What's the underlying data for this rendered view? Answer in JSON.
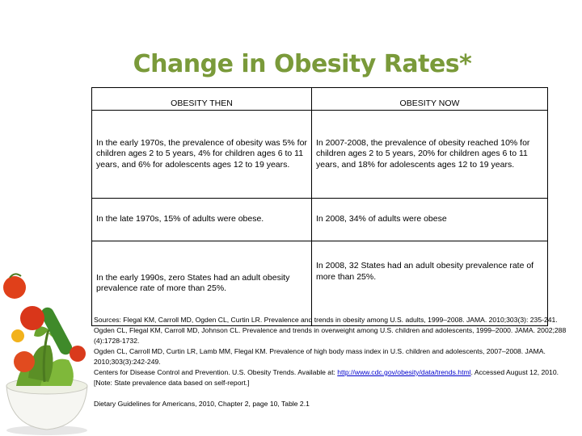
{
  "title": "Change in Obesity Rates*",
  "table": {
    "headers": [
      "OBESITY THEN",
      "OBESITY NOW"
    ],
    "rows": [
      [
        "In the early 1970s, the prevalence of obesity was 5% for children ages 2 to 5 years, 4% for children ages 6 to 11 years, and 6% for adolescents ages 12 to 19 years.",
        "In 2007-2008, the prevalence of obesity reached 10% for children ages 2 to 5 years, 20% for children ages 6 to 11 years, and 18% for adolescents ages 12 to 19 years."
      ],
      [
        "In the late 1970s, 15% of adults were obese.",
        "In 2008, 34% of adults were obese"
      ],
      [
        "In the early 1990s, zero States had an adult obesity prevalence rate of more than 25%.",
        "In 2008, 32 States had an adult obesity prevalence rate of more than 25%."
      ]
    ]
  },
  "sources": {
    "line1": "Sources: Flegal KM, Carroll MD, Ogden CL, Curtin LR. Prevalence and trends in obesity among U.S. adults, 1999–2008. JAMA. 2010;303(3): 235-241.",
    "line2": "Ogden CL, Flegal KM, Carroll MD, Johnson CL. Prevalence and trends in overweight among U.S. children and adolescents, 1999–2000. JAMA. 2002;288 (4):1728-1732.",
    "line3": "Ogden CL, Carroll MD, Curtin LR, Lamb MM, Flegal KM. Prevalence of high body mass index in U.S. children and adolescents, 2007–2008. JAMA. 2010;303(3):242-249.",
    "line4_pre": "Centers for Disease Control and Prevention. U.S. Obesity Trends. Available at: ",
    "link": "http://www.cdc.gov/obesity/data/trends.html",
    "line4_post": ". Accessed August 12, 2010. [Note: State prevalence data based on self-report.]",
    "guidelines": "Dietary Guidelines for Americans, 2010, Chapter 2, page 10, Table 2.1"
  },
  "colors": {
    "title": "#7a9a3a"
  }
}
